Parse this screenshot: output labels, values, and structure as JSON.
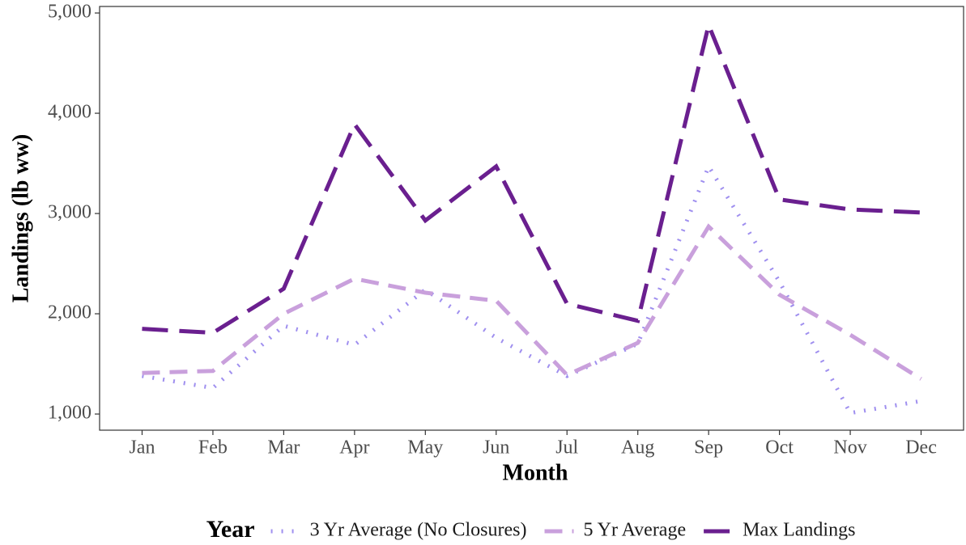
{
  "chart_data": {
    "type": "line",
    "x_label": "Month",
    "y_label": "Landings (lb ww)",
    "categories": [
      "Jan",
      "Feb",
      "Mar",
      "Apr",
      "May",
      "Jun",
      "Jul",
      "Aug",
      "Sep",
      "Oct",
      "Nov",
      "Dec"
    ],
    "series": [
      {
        "name": "3 Yr Average (No Closures)",
        "color": "#9f8fef",
        "dash": "dotted",
        "values": [
          1380,
          1260,
          1880,
          1690,
          2240,
          1760,
          1380,
          1700,
          3470,
          2320,
          1010,
          1130
        ]
      },
      {
        "name": "5 Yr Average",
        "color": "#c9a0dc",
        "dash": "dashed",
        "values": [
          1410,
          1430,
          2000,
          2350,
          2210,
          2130,
          1390,
          1710,
          2870,
          2190,
          1790,
          1350
        ]
      },
      {
        "name": "Max Landings",
        "color": "#6a1f8f",
        "dash": "longdash",
        "values": [
          1850,
          1810,
          2250,
          3890,
          2930,
          3470,
          2100,
          1930,
          4880,
          3140,
          3040,
          3010
        ]
      }
    ],
    "legend_title": "Year",
    "legend_position": "bottom",
    "ylim": [
      839,
      5065
    ],
    "yticks": [
      {
        "value": 1000,
        "label": "1,000"
      },
      {
        "value": 2000,
        "label": "2,000"
      },
      {
        "value": 3000,
        "label": "3,000"
      },
      {
        "value": 4000,
        "label": "4,000"
      },
      {
        "value": 5000,
        "label": "5,000"
      }
    ],
    "grid": false
  }
}
